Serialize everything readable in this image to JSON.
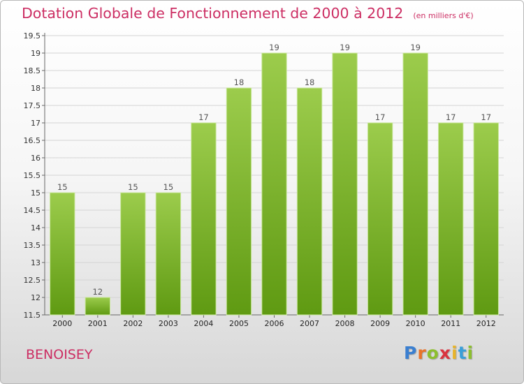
{
  "header": {
    "title": "Dotation Globale de Fonctionnement de 2000 à 2012",
    "subtitle": "(en milliers d'€)"
  },
  "footer": {
    "place": "BENOISEY",
    "logo": {
      "letters": [
        "P",
        "r",
        "o",
        "x",
        "i",
        "t",
        "i"
      ],
      "colors": [
        "#3a7fd0",
        "#e8742b",
        "#8cbf2f",
        "#d9333f",
        "#e8b42b",
        "#3a9fd9",
        "#8cbf2f"
      ]
    }
  },
  "chart_data": {
    "type": "bar",
    "categories": [
      "2000",
      "2001",
      "2002",
      "2003",
      "2004",
      "2005",
      "2006",
      "2007",
      "2008",
      "2009",
      "2010",
      "2011",
      "2012"
    ],
    "values": [
      15,
      12,
      15,
      15,
      17,
      18,
      19,
      18,
      19,
      17,
      19,
      17,
      17
    ],
    "data_labels": [
      "15",
      "12",
      "15",
      "15",
      "17",
      "18",
      "19",
      "18",
      "19",
      "17",
      "19",
      "17",
      "17"
    ],
    "yticks": [
      "11.5",
      "12",
      "12.5",
      "13",
      "13.5",
      "14",
      "14.5",
      "15",
      "15.5",
      "16",
      "16.5",
      "17",
      "17.5",
      "18",
      "18.5",
      "19",
      "19.5"
    ],
    "ylim": [
      11.5,
      19.5
    ],
    "grid": true,
    "bar_color": "#7cb832"
  }
}
